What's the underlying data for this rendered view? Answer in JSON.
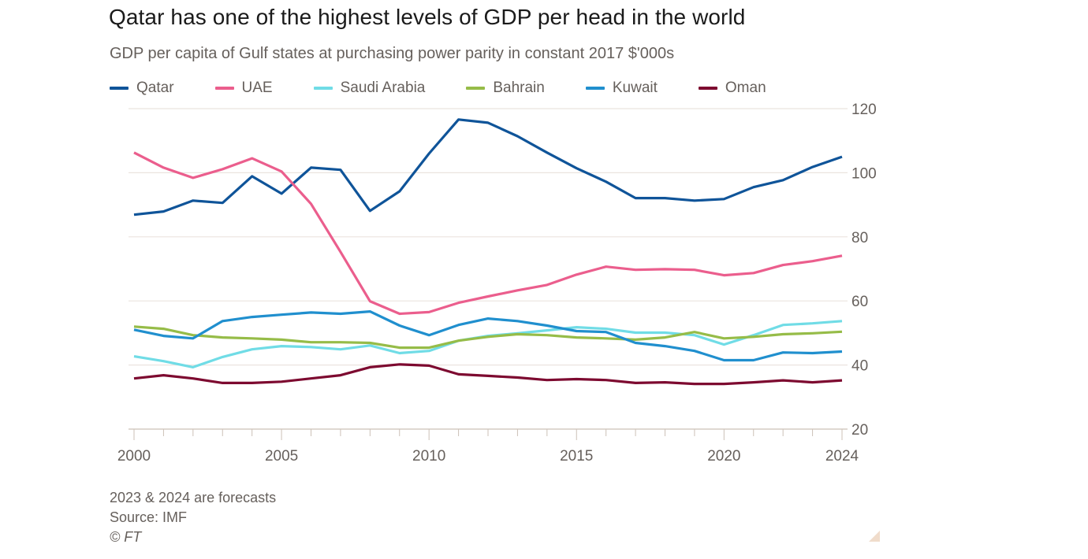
{
  "header": {
    "title": "Qatar has one of the highest levels of GDP per head in the world",
    "subtitle": "GDP per capita of Gulf states at purchasing power parity in constant 2017 $'000s"
  },
  "footer": {
    "note": "2023 & 2024 are forecasts",
    "source": "Source: IMF",
    "copyright": "© FT"
  },
  "chart_data": {
    "type": "line",
    "title": "Qatar has one of the highest levels of GDP per head in the world",
    "subtitle": "GDP per capita of Gulf states at purchasing power parity in constant 2017 $'000s",
    "xlabel": "",
    "ylabel": "",
    "x": [
      2000,
      2001,
      2002,
      2003,
      2004,
      2005,
      2006,
      2007,
      2008,
      2009,
      2010,
      2011,
      2012,
      2013,
      2014,
      2015,
      2016,
      2017,
      2018,
      2019,
      2020,
      2021,
      2022,
      2023,
      2024
    ],
    "xticks": [
      2000,
      2005,
      2010,
      2015,
      2020,
      2024
    ],
    "xtick_labels": [
      "2000",
      "2005",
      "2010",
      "2015",
      "2020",
      "2024"
    ],
    "xlim": [
      2000,
      2024
    ],
    "yticks": [
      20,
      40,
      60,
      80,
      100,
      120
    ],
    "ytick_labels": [
      "20",
      "40",
      "60",
      "80",
      "100",
      "120"
    ],
    "ylim": [
      20,
      120
    ],
    "yaxis_side": "right",
    "grid": true,
    "legend_position": "top-left",
    "series": [
      {
        "name": "Qatar",
        "color": "#0f5499",
        "values": [
          86.9,
          87.9,
          91.3,
          90.6,
          98.9,
          93.5,
          101.6,
          100.9,
          88.1,
          94.2,
          106.0,
          116.6,
          115.6,
          111.4,
          106.3,
          101.4,
          97.2,
          92.1,
          92.1,
          91.3,
          91.8,
          95.5,
          97.7,
          101.8,
          105.0
        ]
      },
      {
        "name": "UAE",
        "color": "#eb5e8d",
        "values": [
          106.3,
          101.6,
          98.4,
          101.1,
          104.5,
          100.4,
          90.3,
          75.3,
          59.9,
          56.0,
          56.5,
          59.4,
          61.4,
          63.3,
          65.0,
          68.2,
          70.7,
          69.7,
          69.9,
          69.7,
          68.0,
          68.7,
          71.2,
          72.4,
          74.1
        ]
      },
      {
        "name": "Saudi Arabia",
        "color": "#70dce6",
        "values": [
          42.7,
          41.2,
          39.3,
          42.5,
          44.9,
          45.9,
          45.6,
          44.9,
          46.1,
          43.7,
          44.4,
          47.6,
          49.1,
          49.9,
          50.8,
          51.8,
          51.3,
          50.1,
          50.1,
          49.3,
          46.4,
          49.3,
          52.5,
          53.0,
          53.7
        ]
      },
      {
        "name": "Bahrain",
        "color": "#96bc48",
        "values": [
          52.0,
          51.3,
          49.3,
          48.6,
          48.3,
          47.9,
          47.1,
          47.1,
          46.9,
          45.4,
          45.4,
          47.6,
          48.8,
          49.6,
          49.3,
          48.6,
          48.3,
          47.9,
          48.6,
          50.3,
          48.3,
          48.8,
          49.6,
          49.9,
          50.4
        ]
      },
      {
        "name": "Kuwait",
        "color": "#208fce",
        "values": [
          51.0,
          49.1,
          48.3,
          53.7,
          55.0,
          55.7,
          56.4,
          56.0,
          56.7,
          52.3,
          49.3,
          52.5,
          54.5,
          53.7,
          52.3,
          50.6,
          50.3,
          46.9,
          45.9,
          44.4,
          41.5,
          41.5,
          43.9,
          43.7,
          44.2
        ]
      },
      {
        "name": "Oman",
        "color": "#7d0a30",
        "values": [
          35.8,
          36.8,
          35.8,
          34.4,
          34.4,
          34.8,
          35.8,
          36.8,
          39.3,
          40.2,
          39.8,
          37.1,
          36.6,
          36.1,
          35.3,
          35.6,
          35.3,
          34.4,
          34.6,
          34.1,
          34.1,
          34.6,
          35.2,
          34.6,
          35.2
        ]
      }
    ],
    "annotations": []
  }
}
